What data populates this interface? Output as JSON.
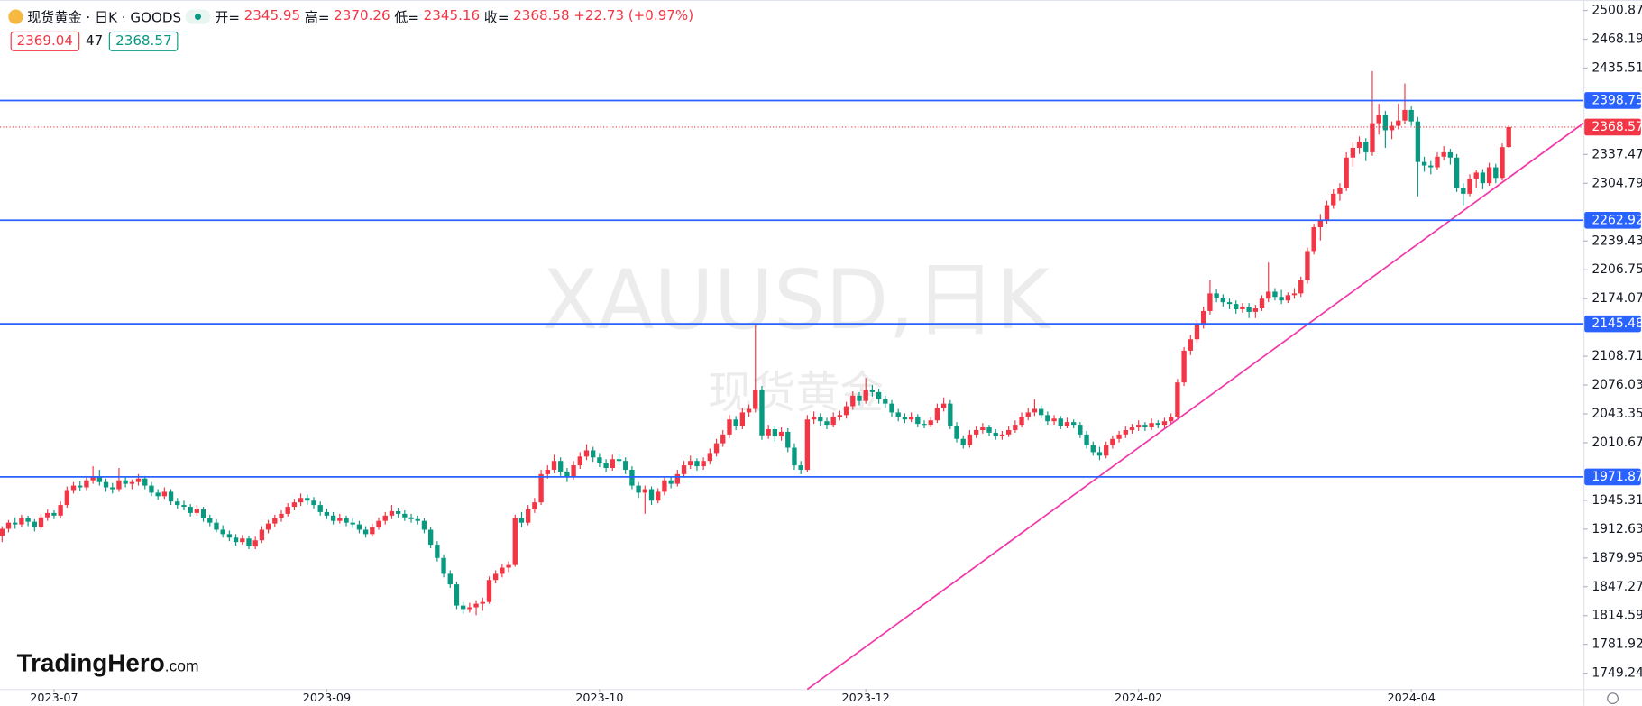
{
  "header": {
    "symbol": "现货黄金 · 日K · GOODS",
    "open_label": "开=",
    "high_label": "高=",
    "low_label": "低=",
    "close_label": "收=",
    "change": "+22.73",
    "change_pct": "(+0.97%)",
    "bid": 2369.04,
    "spread": 47,
    "ask": 2368.57,
    "logo": "TradingHero",
    "logo_suffix": ".com"
  },
  "chart_data": {
    "type": "candlestick",
    "watermark": "XAUUSD,日K",
    "watermark_sub": "现货黄金",
    "up_color": "#f23645",
    "down_color": "#089981",
    "xlim": [
      -0.32,
      243.5
    ],
    "ylim": [
      1731.3,
      2512.7
    ],
    "xticks": [
      {
        "value": 8,
        "label": "2023-07"
      },
      {
        "value": 50,
        "label": "2023-09"
      },
      {
        "value": 92,
        "label": "2023-10"
      },
      {
        "value": 133,
        "label": "2023-12"
      },
      {
        "value": 175,
        "label": "2024-02"
      },
      {
        "value": 217,
        "label": "2024-04"
      }
    ],
    "yticks": [
      2500.87,
      2468.19,
      2435.51,
      2337.47,
      2304.79,
      2239.43,
      2206.75,
      2174.07,
      2108.71,
      2076.03,
      2043.35,
      2010.67,
      1945.31,
      1912.63,
      1879.95,
      1847.27,
      1814.59,
      1781.92,
      1749.24
    ],
    "levels": [
      2398.75,
      2262.92,
      2145.48,
      1971.87
    ],
    "level_color": "#2962ff",
    "last_price": 2368.57,
    "last_price_color": "#f23645",
    "trendline": {
      "x": [
        124,
        243.5
      ],
      "y": [
        1731,
        2373
      ],
      "color": "#f03aa8"
    },
    "candles": [
      [
        1905,
        1916,
        1898,
        1913
      ],
      [
        1913,
        1923,
        1909,
        1920
      ],
      [
        1920,
        1926,
        1913,
        1918
      ],
      [
        1918,
        1929,
        1915,
        1925
      ],
      [
        1925,
        1928,
        1916,
        1921
      ],
      [
        1921,
        1924,
        1910,
        1915
      ],
      [
        1915,
        1930,
        1912,
        1926
      ],
      [
        1926,
        1935,
        1922,
        1931
      ],
      [
        1931,
        1934,
        1924,
        1928
      ],
      [
        1928,
        1944,
        1925,
        1940
      ],
      [
        1940,
        1961,
        1937,
        1957
      ],
      [
        1957,
        1966,
        1953,
        1962
      ],
      [
        1962,
        1967,
        1956,
        1960
      ],
      [
        1960,
        1973,
        1957,
        1968
      ],
      [
        1968,
        1984,
        1964,
        1972
      ],
      [
        1972,
        1980,
        1962,
        1966
      ],
      [
        1966,
        1970,
        1955,
        1960
      ],
      [
        1960,
        1965,
        1953,
        1958
      ],
      [
        1958,
        1982,
        1955,
        1968
      ],
      [
        1968,
        1972,
        1960,
        1964
      ],
      [
        1964,
        1969,
        1958,
        1966
      ],
      [
        1966,
        1975,
        1962,
        1970
      ],
      [
        1970,
        1973,
        1958,
        1962
      ],
      [
        1962,
        1966,
        1950,
        1954
      ],
      [
        1954,
        1958,
        1946,
        1950
      ],
      [
        1950,
        1960,
        1947,
        1955
      ],
      [
        1955,
        1958,
        1940,
        1944
      ],
      [
        1944,
        1948,
        1936,
        1940
      ],
      [
        1940,
        1945,
        1934,
        1938
      ],
      [
        1938,
        1941,
        1927,
        1931
      ],
      [
        1931,
        1940,
        1928,
        1935
      ],
      [
        1935,
        1938,
        1921,
        1925
      ],
      [
        1925,
        1929,
        1916,
        1920
      ],
      [
        1920,
        1924,
        1909,
        1912
      ],
      [
        1912,
        1917,
        1903,
        1907
      ],
      [
        1907,
        1911,
        1899,
        1903
      ],
      [
        1903,
        1907,
        1894,
        1898
      ],
      [
        1898,
        1906,
        1895,
        1902
      ],
      [
        1902,
        1905,
        1890,
        1893
      ],
      [
        1893,
        1904,
        1890,
        1900
      ],
      [
        1900,
        1916,
        1897,
        1912
      ],
      [
        1912,
        1923,
        1908,
        1919
      ],
      [
        1919,
        1929,
        1915,
        1925
      ],
      [
        1925,
        1934,
        1921,
        1930
      ],
      [
        1930,
        1942,
        1927,
        1938
      ],
      [
        1938,
        1947,
        1934,
        1943
      ],
      [
        1943,
        1953,
        1939,
        1948
      ],
      [
        1948,
        1952,
        1940,
        1945
      ],
      [
        1945,
        1949,
        1936,
        1940
      ],
      [
        1940,
        1944,
        1928,
        1932
      ],
      [
        1932,
        1936,
        1924,
        1928
      ],
      [
        1928,
        1932,
        1918,
        1922
      ],
      [
        1922,
        1930,
        1919,
        1925
      ],
      [
        1925,
        1928,
        1916,
        1920
      ],
      [
        1920,
        1925,
        1914,
        1918
      ],
      [
        1918,
        1922,
        1908,
        1912
      ],
      [
        1912,
        1916,
        1903,
        1907
      ],
      [
        1907,
        1919,
        1904,
        1915
      ],
      [
        1915,
        1926,
        1912,
        1922
      ],
      [
        1922,
        1932,
        1918,
        1928
      ],
      [
        1928,
        1940,
        1924,
        1933
      ],
      [
        1933,
        1937,
        1926,
        1930
      ],
      [
        1930,
        1934,
        1922,
        1926
      ],
      [
        1926,
        1930,
        1920,
        1924
      ],
      [
        1924,
        1928,
        1918,
        1922
      ],
      [
        1922,
        1925,
        1908,
        1912
      ],
      [
        1912,
        1915,
        1891,
        1895
      ],
      [
        1895,
        1899,
        1876,
        1880
      ],
      [
        1880,
        1884,
        1858,
        1862
      ],
      [
        1862,
        1866,
        1846,
        1850
      ],
      [
        1850,
        1853,
        1822,
        1826
      ],
      [
        1826,
        1830,
        1817,
        1822
      ],
      [
        1822,
        1829,
        1818,
        1824
      ],
      [
        1824,
        1832,
        1815,
        1828
      ],
      [
        1828,
        1835,
        1820,
        1830
      ],
      [
        1830,
        1859,
        1828,
        1855
      ],
      [
        1855,
        1866,
        1851,
        1862
      ],
      [
        1862,
        1873,
        1858,
        1869
      ],
      [
        1869,
        1876,
        1864,
        1872
      ],
      [
        1872,
        1929,
        1870,
        1925
      ],
      [
        1925,
        1932,
        1915,
        1920
      ],
      [
        1920,
        1940,
        1917,
        1935
      ],
      [
        1935,
        1948,
        1931,
        1943
      ],
      [
        1943,
        1980,
        1940,
        1975
      ],
      [
        1975,
        1985,
        1970,
        1980
      ],
      [
        1980,
        1997,
        1976,
        1990
      ],
      [
        1990,
        1994,
        1973,
        1978
      ],
      [
        1978,
        1982,
        1966,
        1972
      ],
      [
        1972,
        1990,
        1969,
        1985
      ],
      [
        1985,
        2000,
        1981,
        1995
      ],
      [
        1995,
        2009,
        1991,
        2002
      ],
      [
        2002,
        2006,
        1989,
        1994
      ],
      [
        1994,
        1999,
        1983,
        1988
      ],
      [
        1988,
        1992,
        1977,
        1982
      ],
      [
        1982,
        1997,
        1979,
        1992
      ],
      [
        1992,
        1998,
        1985,
        1990
      ],
      [
        1990,
        1994,
        1975,
        1980
      ],
      [
        1980,
        1984,
        1958,
        1962
      ],
      [
        1962,
        1966,
        1948,
        1954
      ],
      [
        1954,
        1962,
        1930,
        1958
      ],
      [
        1958,
        1961,
        1940,
        1945
      ],
      [
        1945,
        1959,
        1942,
        1955
      ],
      [
        1955,
        1972,
        1951,
        1968
      ],
      [
        1968,
        1972,
        1959,
        1964
      ],
      [
        1964,
        1980,
        1961,
        1975
      ],
      [
        1975,
        1990,
        1972,
        1985
      ],
      [
        1985,
        1996,
        1981,
        1990
      ],
      [
        1990,
        1993,
        1979,
        1984
      ],
      [
        1984,
        1994,
        1980,
        1990
      ],
      [
        1990,
        2004,
        1986,
        1999
      ],
      [
        1999,
        2015,
        1995,
        2010
      ],
      [
        2010,
        2025,
        2006,
        2020
      ],
      [
        2020,
        2042,
        2016,
        2037
      ],
      [
        2037,
        2041,
        2025,
        2030
      ],
      [
        2030,
        2050,
        2026,
        2045
      ],
      [
        2045,
        2054,
        2040,
        2049
      ],
      [
        2049,
        2144,
        2045,
        2071
      ],
      [
        2071,
        2075,
        2014,
        2019
      ],
      [
        2019,
        2031,
        2015,
        2026
      ],
      [
        2026,
        2030,
        2012,
        2018
      ],
      [
        2018,
        2028,
        2013,
        2023
      ],
      [
        2023,
        2027,
        2000,
        2005
      ],
      [
        2005,
        2010,
        1980,
        1985
      ],
      [
        1985,
        1990,
        1975,
        1980
      ],
      [
        1980,
        2042,
        1978,
        2037
      ],
      [
        2037,
        2046,
        2032,
        2040
      ],
      [
        2040,
        2044,
        2030,
        2035
      ],
      [
        2035,
        2039,
        2026,
        2031
      ],
      [
        2031,
        2045,
        2028,
        2040
      ],
      [
        2040,
        2047,
        2036,
        2042
      ],
      [
        2042,
        2057,
        2038,
        2052
      ],
      [
        2052,
        2069,
        2048,
        2064
      ],
      [
        2064,
        2068,
        2053,
        2058
      ],
      [
        2058,
        2084,
        2055,
        2071
      ],
      [
        2071,
        2076,
        2063,
        2068
      ],
      [
        2068,
        2072,
        2055,
        2060
      ],
      [
        2060,
        2064,
        2050,
        2055
      ],
      [
        2055,
        2059,
        2040,
        2045
      ],
      [
        2045,
        2049,
        2035,
        2040
      ],
      [
        2040,
        2044,
        2033,
        2037
      ],
      [
        2037,
        2045,
        2034,
        2040
      ],
      [
        2040,
        2043,
        2028,
        2032
      ],
      [
        2032,
        2036,
        2027,
        2031
      ],
      [
        2031,
        2040,
        2028,
        2036
      ],
      [
        2036,
        2055,
        2033,
        2050
      ],
      [
        2050,
        2062,
        2046,
        2055
      ],
      [
        2055,
        2059,
        2026,
        2030
      ],
      [
        2030,
        2034,
        2011,
        2015
      ],
      [
        2015,
        2019,
        2004,
        2008
      ],
      [
        2008,
        2025,
        2005,
        2020
      ],
      [
        2020,
        2030,
        2016,
        2025
      ],
      [
        2025,
        2033,
        2021,
        2028
      ],
      [
        2028,
        2031,
        2018,
        2022
      ],
      [
        2022,
        2026,
        2014,
        2018
      ],
      [
        2018,
        2024,
        2014,
        2020
      ],
      [
        2020,
        2030,
        2017,
        2025
      ],
      [
        2025,
        2036,
        2022,
        2031
      ],
      [
        2031,
        2045,
        2028,
        2040
      ],
      [
        2040,
        2050,
        2036,
        2045
      ],
      [
        2045,
        2060,
        2041,
        2049
      ],
      [
        2049,
        2053,
        2038,
        2042
      ],
      [
        2042,
        2046,
        2031,
        2035
      ],
      [
        2035,
        2042,
        2031,
        2038
      ],
      [
        2038,
        2041,
        2026,
        2030
      ],
      [
        2030,
        2039,
        2027,
        2034
      ],
      [
        2034,
        2037,
        2027,
        2031
      ],
      [
        2031,
        2034,
        2016,
        2020
      ],
      [
        2020,
        2024,
        2004,
        2008
      ],
      [
        2008,
        2012,
        1996,
        2000
      ],
      [
        2000,
        2006,
        1991,
        1996
      ],
      [
        1996,
        2012,
        1993,
        2008
      ],
      [
        2008,
        2019,
        2004,
        2015
      ],
      [
        2015,
        2024,
        2011,
        2020
      ],
      [
        2020,
        2029,
        2016,
        2025
      ],
      [
        2025,
        2032,
        2021,
        2028
      ],
      [
        2028,
        2036,
        2024,
        2031
      ],
      [
        2031,
        2034,
        2024,
        2028
      ],
      [
        2028,
        2038,
        2025,
        2033
      ],
      [
        2033,
        2036,
        2027,
        2031
      ],
      [
        2031,
        2039,
        2027,
        2035
      ],
      [
        2035,
        2044,
        2031,
        2040
      ],
      [
        2040,
        2083,
        2037,
        2079
      ],
      [
        2079,
        2119,
        2075,
        2115
      ],
      [
        2115,
        2133,
        2110,
        2128
      ],
      [
        2128,
        2150,
        2124,
        2144
      ],
      [
        2144,
        2165,
        2140,
        2160
      ],
      [
        2160,
        2195,
        2156,
        2180
      ],
      [
        2180,
        2185,
        2170,
        2175
      ],
      [
        2175,
        2179,
        2165,
        2170
      ],
      [
        2170,
        2174,
        2162,
        2168
      ],
      [
        2168,
        2172,
        2157,
        2162
      ],
      [
        2162,
        2169,
        2158,
        2165
      ],
      [
        2165,
        2169,
        2152,
        2159
      ],
      [
        2159,
        2167,
        2152,
        2163
      ],
      [
        2163,
        2178,
        2160,
        2174
      ],
      [
        2174,
        2215,
        2170,
        2182
      ],
      [
        2182,
        2186,
        2172,
        2176
      ],
      [
        2176,
        2184,
        2168,
        2172
      ],
      [
        2172,
        2181,
        2169,
        2178
      ],
      [
        2178,
        2186,
        2174,
        2180
      ],
      [
        2180,
        2199,
        2176,
        2195
      ],
      [
        2195,
        2232,
        2191,
        2228
      ],
      [
        2228,
        2259,
        2224,
        2255
      ],
      [
        2255,
        2270,
        2240,
        2263
      ],
      [
        2263,
        2285,
        2259,
        2280
      ],
      [
        2280,
        2298,
        2276,
        2293
      ],
      [
        2293,
        2305,
        2285,
        2300
      ],
      [
        2300,
        2340,
        2296,
        2334
      ],
      [
        2334,
        2351,
        2324,
        2345
      ],
      [
        2345,
        2358,
        2338,
        2352
      ],
      [
        2352,
        2356,
        2330,
        2340
      ],
      [
        2340,
        2432,
        2336,
        2373
      ],
      [
        2373,
        2395,
        2360,
        2382
      ],
      [
        2382,
        2387,
        2345,
        2365
      ],
      [
        2365,
        2375,
        2355,
        2370
      ],
      [
        2370,
        2395,
        2366,
        2376
      ],
      [
        2376,
        2418,
        2372,
        2388
      ],
      [
        2388,
        2392,
        2370,
        2375
      ],
      [
        2375,
        2380,
        2290,
        2329
      ],
      [
        2329,
        2335,
        2318,
        2325
      ],
      [
        2325,
        2330,
        2315,
        2323
      ],
      [
        2323,
        2340,
        2320,
        2335
      ],
      [
        2335,
        2347,
        2331,
        2340
      ],
      [
        2340,
        2344,
        2326,
        2334
      ],
      [
        2334,
        2338,
        2295,
        2300
      ],
      [
        2300,
        2305,
        2280,
        2293
      ],
      [
        2293,
        2315,
        2290,
        2310
      ],
      [
        2310,
        2320,
        2300,
        2317
      ],
      [
        2317,
        2321,
        2298,
        2305
      ],
      [
        2305,
        2328,
        2302,
        2323
      ],
      [
        2323,
        2327,
        2305,
        2311
      ],
      [
        2311,
        2350,
        2308,
        2345.85
      ],
      [
        2345.95,
        2370.26,
        2345.16,
        2368.58
      ]
    ]
  }
}
